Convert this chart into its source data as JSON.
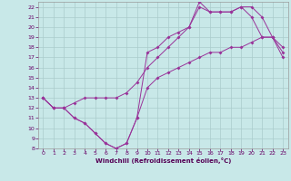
{
  "xlabel": "Windchill (Refroidissement éolien,°C)",
  "bg_color": "#c8e8e8",
  "grid_color": "#aacccc",
  "line_color": "#993399",
  "xlim": [
    -0.5,
    23.5
  ],
  "ylim": [
    8,
    22.5
  ],
  "xticks": [
    0,
    1,
    2,
    3,
    4,
    5,
    6,
    7,
    8,
    9,
    10,
    11,
    12,
    13,
    14,
    15,
    16,
    17,
    18,
    19,
    20,
    21,
    22,
    23
  ],
  "yticks": [
    8,
    9,
    10,
    11,
    12,
    13,
    14,
    15,
    16,
    17,
    18,
    19,
    20,
    21,
    22
  ],
  "curve1_x": [
    0,
    1,
    2,
    3,
    4,
    5,
    6,
    7,
    8,
    9,
    10,
    11,
    12,
    13,
    14,
    15,
    16,
    17,
    18,
    19,
    20,
    21,
    22,
    23
  ],
  "curve1_y": [
    13,
    12,
    12,
    11,
    10.5,
    9.5,
    8.5,
    8,
    8.5,
    11,
    17.5,
    18,
    19,
    19.5,
    20,
    22.5,
    21.5,
    21.5,
    21.5,
    22,
    21,
    19,
    19,
    18
  ],
  "curve2_x": [
    0,
    1,
    2,
    3,
    4,
    5,
    6,
    7,
    8,
    9,
    10,
    11,
    12,
    13,
    14,
    15,
    16,
    17,
    18,
    19,
    20,
    21,
    22,
    23
  ],
  "curve2_y": [
    13,
    12,
    12,
    11,
    10.5,
    9.5,
    8.5,
    8,
    8.5,
    11,
    14,
    15,
    15.5,
    16,
    16.5,
    17,
    17.5,
    17.5,
    18,
    18,
    18.5,
    19,
    19,
    17.5
  ],
  "curve3_x": [
    0,
    1,
    2,
    3,
    4,
    5,
    6,
    7,
    8,
    9,
    10,
    11,
    12,
    13,
    14,
    15,
    16,
    17,
    18,
    19,
    20,
    21,
    22,
    23
  ],
  "curve3_y": [
    13,
    12,
    12,
    12.5,
    13,
    13,
    13,
    13,
    13.5,
    14.5,
    16,
    17,
    18,
    19,
    20,
    22,
    21.5,
    21.5,
    21.5,
    22,
    22,
    21,
    19,
    17
  ]
}
